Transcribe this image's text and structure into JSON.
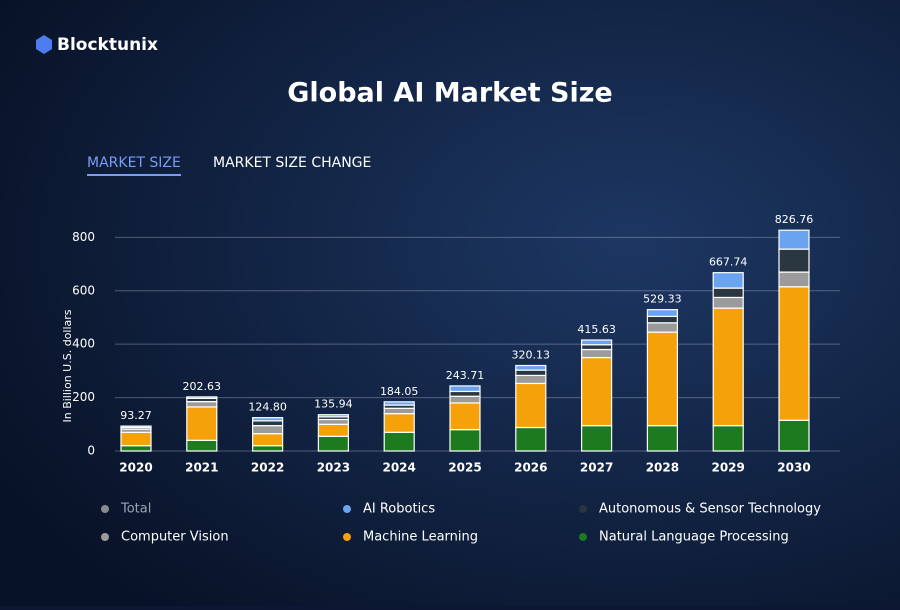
{
  "brand": "Blocktunix",
  "tabs": [
    "MARKET SIZE",
    "MARKET SIZE CHANGE"
  ],
  "chart_data": {
    "type": "bar",
    "stacked": true,
    "title": "Global AI Market Size",
    "y_label": "In Billion U.S. dollars",
    "categories": [
      "2020",
      "2021",
      "2022",
      "2023",
      "2024",
      "2025",
      "2026",
      "2027",
      "2028",
      "2029",
      "2030"
    ],
    "ylim": [
      0,
      850
    ],
    "yticks": [
      0,
      200,
      400,
      600,
      800
    ],
    "grid": true,
    "series": [
      {
        "name": "Natural Language Processing",
        "color": "#1e7a1e",
        "values": [
          20,
          40,
          20,
          55,
          70,
          80,
          88,
          95,
          95,
          95,
          115
        ]
      },
      {
        "name": "Machine Learning",
        "color": "#f5a20a",
        "values": [
          50,
          125,
          45,
          45,
          70,
          100,
          165,
          255,
          350,
          440,
          500
        ]
      },
      {
        "name": "Computer Vision",
        "color": "#9b9b9b",
        "values": [
          12,
          20,
          30,
          18,
          20,
          25,
          30,
          30,
          35,
          40,
          55
        ]
      },
      {
        "name": "Autonomous & Sensor Technology",
        "color": "#2a3640",
        "values": [
          6,
          12,
          18,
          10,
          12,
          18,
          20,
          18,
          24,
          35,
          86
        ]
      },
      {
        "name": "AI Robotics",
        "color": "#6aa3f0",
        "values": [
          5.27,
          5.63,
          11.8,
          7.94,
          12.05,
          20.71,
          17.13,
          17.63,
          25.33,
          57.74,
          70.76
        ]
      }
    ],
    "total": {
      "name": "Total",
      "color": "#8a8a8a",
      "values": [
        93.27,
        202.63,
        124.8,
        135.94,
        184.05,
        243.71,
        320.13,
        415.63,
        529.33,
        667.74,
        826.76
      ],
      "value_labels": [
        "93.27",
        "202.63",
        "124.80",
        "135.94",
        "184.05",
        "243.71",
        "320.13",
        "415.63",
        "529.33",
        "667.74",
        "826.76"
      ]
    }
  }
}
